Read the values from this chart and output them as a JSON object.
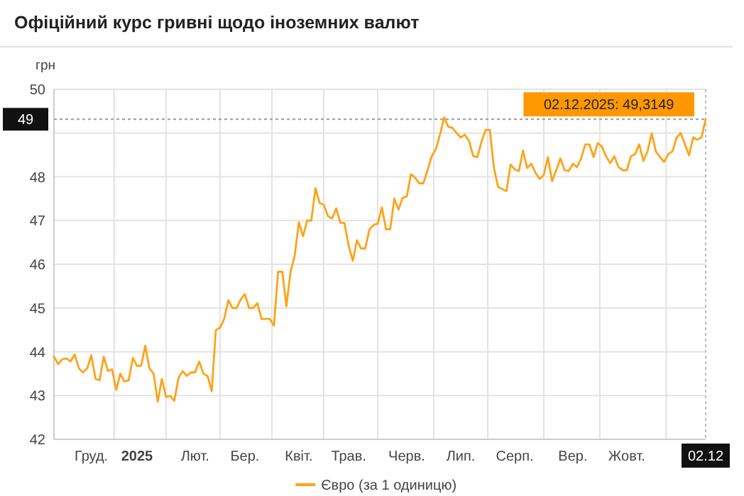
{
  "chart_data": {
    "type": "line",
    "title": "Офіційний курс гривні щодо іноземних валют",
    "ylabel": "грн",
    "categories": [
      null,
      null,
      null,
      null,
      null,
      null,
      null,
      null,
      null,
      "Груд.",
      null,
      null,
      null,
      null,
      null,
      null,
      null,
      null,
      null,
      null,
      "2025",
      null,
      null,
      null,
      null,
      null,
      null,
      null,
      null,
      null,
      null,
      null,
      null,
      null,
      "Лют.",
      null,
      null,
      null,
      null,
      null,
      null,
      null,
      null,
      null,
      null,
      null,
      "Бер.",
      null,
      null,
      null,
      null,
      null,
      null,
      null,
      null,
      null,
      null,
      null,
      null,
      "Квіт.",
      null,
      null,
      null,
      null,
      null,
      null,
      null,
      null,
      null,
      null,
      null,
      "Трав.",
      null,
      null,
      null,
      null,
      null,
      null,
      null,
      null,
      null,
      null,
      null,
      null,
      null,
      "Черв.",
      null,
      null,
      null,
      null,
      null,
      null,
      null,
      null,
      null,
      null,
      null,
      null,
      "Лип.",
      null,
      null,
      null,
      null,
      null,
      null,
      null,
      null,
      null,
      null,
      null,
      null,
      "Серп.",
      null,
      null,
      null,
      null,
      null,
      null,
      null,
      null,
      null,
      null,
      null,
      null,
      null,
      "Вер.",
      null,
      null,
      null,
      null,
      null,
      null,
      null,
      null,
      null,
      null,
      null,
      null,
      "Жовт.",
      null,
      null,
      null,
      null,
      null,
      null,
      null,
      null,
      null,
      null,
      null,
      null,
      null,
      null,
      null,
      null,
      null,
      null,
      "02.12"
    ],
    "series": [
      {
        "name": "Євро (за 1 одиницю)",
        "color": "#ffa31a",
        "values": [
          43.89,
          43.72,
          43.83,
          43.85,
          43.78,
          43.94,
          43.62,
          43.53,
          43.62,
          43.92,
          43.38,
          43.35,
          43.89,
          43.56,
          43.6,
          43.13,
          43.5,
          43.32,
          43.35,
          43.86,
          43.68,
          43.68,
          44.14,
          43.62,
          43.5,
          42.86,
          43.38,
          42.97,
          42.99,
          42.88,
          43.4,
          43.56,
          43.45,
          43.53,
          43.53,
          43.78,
          43.5,
          43.45,
          43.1,
          44.5,
          44.55,
          44.75,
          45.18,
          45.0,
          45.0,
          45.2,
          45.32,
          45.0,
          45.0,
          45.11,
          44.75,
          44.75,
          44.75,
          44.6,
          45.83,
          45.83,
          45.04,
          45.83,
          46.2,
          46.96,
          46.64,
          47.0,
          47.0,
          47.74,
          47.4,
          47.36,
          47.1,
          47.05,
          47.28,
          46.95,
          46.94,
          46.42,
          46.08,
          46.55,
          46.36,
          46.36,
          46.8,
          46.9,
          46.93,
          47.3,
          46.8,
          46.8,
          47.5,
          47.25,
          47.52,
          47.55,
          48.06,
          47.98,
          47.85,
          47.85,
          48.15,
          48.47,
          48.63,
          48.96,
          49.36,
          49.14,
          49.12,
          49.0,
          48.9,
          48.96,
          48.82,
          48.47,
          48.45,
          48.8,
          49.07,
          49.07,
          48.2,
          47.77,
          47.72,
          47.67,
          48.28,
          48.17,
          48.13,
          48.6,
          48.2,
          48.3,
          48.09,
          47.95,
          48.04,
          48.45,
          47.9,
          48.15,
          48.42,
          48.15,
          48.13,
          48.3,
          48.22,
          48.42,
          48.74,
          48.74,
          48.45,
          48.77,
          48.69,
          48.47,
          48.31,
          48.47,
          48.22,
          48.15,
          48.15,
          48.47,
          48.52,
          48.74,
          48.36,
          48.58,
          48.99,
          48.58,
          48.45,
          48.34,
          48.52,
          48.58,
          48.9,
          49.0,
          48.74,
          48.49,
          48.9,
          48.85,
          48.9,
          49.3149
        ]
      }
    ],
    "ylim": [
      42,
      50
    ],
    "yticks": [
      42,
      43,
      44,
      45,
      46,
      47,
      48,
      {
        "value": 49,
        "label": null
      },
      50
    ],
    "grid": true,
    "legend": "bottom",
    "marker": "none",
    "line_style": "solid",
    "ref_lines": [
      {
        "axis": "y",
        "value": 49.3149,
        "label": "49",
        "line_style": "dotted",
        "color": "#999999"
      },
      {
        "axis": "x",
        "value": "02.12",
        "label": "02.12",
        "line_style": "dotted",
        "color": "#bbbbbb"
      }
    ],
    "annotations": [
      {
        "text": "02.12.2025: 49,3149",
        "x": "02.12",
        "y": 49.3149
      }
    ]
  }
}
